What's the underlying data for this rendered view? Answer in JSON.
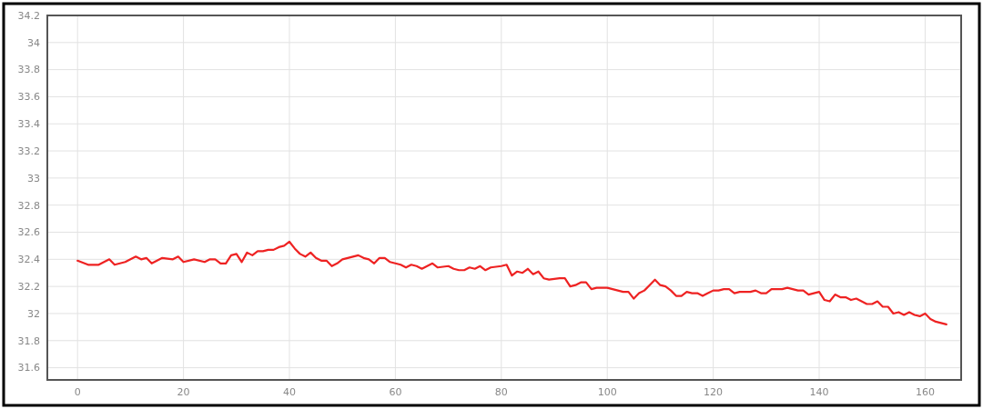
{
  "chart_data": {
    "type": "line",
    "grid": true,
    "marker": "none",
    "line_style": "solid",
    "xlim": [
      -5.7,
      166.8
    ],
    "xticks": [
      0,
      20,
      40,
      60,
      80,
      100,
      120,
      140,
      160
    ],
    "ylim": [
      31.51,
      34.2
    ],
    "yticks": [
      31.6,
      31.8,
      32,
      32.2,
      32.4,
      32.6,
      32.8,
      33,
      33.2,
      33.4,
      33.6,
      33.8,
      34,
      34.2
    ],
    "series": [
      {
        "color": "#ee2222",
        "x": [
          0,
          2,
          4,
          6,
          7,
          9,
          11,
          12,
          13,
          14,
          16,
          18,
          19,
          20,
          22,
          24,
          25,
          26,
          27,
          28,
          29,
          30,
          31,
          32,
          33,
          34,
          35,
          36,
          37,
          38,
          39,
          40,
          41,
          42,
          43,
          44,
          45,
          46,
          47,
          48,
          49,
          50,
          52,
          53,
          54,
          55,
          56,
          57,
          58,
          59,
          60,
          61,
          62,
          63,
          64,
          65,
          66,
          67,
          68,
          70,
          71,
          72,
          73,
          74,
          75,
          76,
          77,
          78,
          80,
          81,
          82,
          83,
          84,
          85,
          86,
          87,
          88,
          89,
          91,
          92,
          93,
          94,
          95,
          96,
          97,
          98,
          100,
          102,
          103,
          104,
          105,
          106,
          107,
          108,
          109,
          110,
          111,
          112,
          113,
          114,
          115,
          116,
          117,
          118,
          119,
          120,
          121,
          122,
          123,
          124,
          125,
          126,
          127,
          128,
          129,
          130,
          131,
          132,
          133,
          134,
          135,
          136,
          137,
          138,
          139,
          140,
          141,
          142,
          143,
          144,
          145,
          146,
          147,
          148,
          149,
          150,
          151,
          152,
          153,
          154,
          155,
          156,
          157,
          158,
          159,
          160,
          161,
          162,
          163,
          164
        ],
        "values": [
          32.39,
          32.36,
          32.36,
          32.4,
          32.36,
          32.38,
          32.42,
          32.4,
          32.41,
          32.37,
          32.41,
          32.4,
          32.42,
          32.38,
          32.4,
          32.38,
          32.4,
          32.4,
          32.37,
          32.37,
          32.43,
          32.44,
          32.38,
          32.45,
          32.43,
          32.46,
          32.46,
          32.47,
          32.47,
          32.49,
          32.5,
          32.53,
          32.48,
          32.44,
          32.42,
          32.45,
          32.41,
          32.39,
          32.39,
          32.35,
          32.37,
          32.4,
          32.42,
          32.43,
          32.41,
          32.4,
          32.37,
          32.41,
          32.41,
          32.38,
          32.37,
          32.36,
          32.34,
          32.36,
          32.35,
          32.33,
          32.35,
          32.37,
          32.34,
          32.35,
          32.33,
          32.32,
          32.32,
          32.34,
          32.33,
          32.35,
          32.32,
          32.34,
          32.35,
          32.36,
          32.28,
          32.31,
          32.3,
          32.33,
          32.29,
          32.31,
          32.26,
          32.25,
          32.26,
          32.26,
          32.2,
          32.21,
          32.23,
          32.23,
          32.18,
          32.19,
          32.19,
          32.17,
          32.16,
          32.16,
          32.11,
          32.15,
          32.17,
          32.21,
          32.25,
          32.21,
          32.2,
          32.17,
          32.13,
          32.13,
          32.16,
          32.15,
          32.15,
          32.13,
          32.15,
          32.17,
          32.17,
          32.18,
          32.18,
          32.15,
          32.16,
          32.16,
          32.16,
          32.17,
          32.15,
          32.15,
          32.18,
          32.18,
          32.18,
          32.19,
          32.18,
          32.17,
          32.17,
          32.14,
          32.15,
          32.16,
          32.1,
          32.09,
          32.14,
          32.12,
          32.12,
          32.1,
          32.11,
          32.09,
          32.07,
          32.07,
          32.09,
          32.05,
          32.05,
          32,
          32.01,
          31.99,
          32.01,
          31.99,
          31.98,
          32,
          31.96,
          31.94,
          31.93,
          31.92
        ]
      }
    ]
  }
}
